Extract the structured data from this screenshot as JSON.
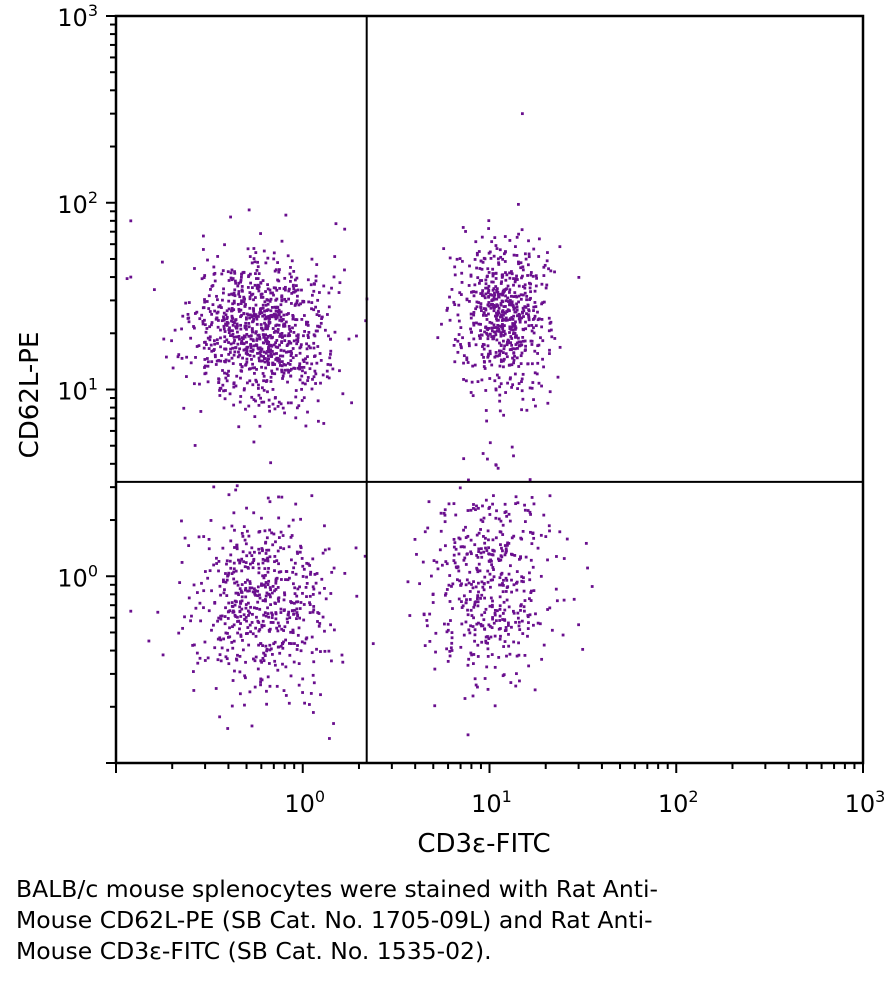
{
  "chart_data": {
    "type": "scatter",
    "title": "",
    "xlabel": "CD3ε-FITC",
    "ylabel": "CD62L-PE",
    "xscale": "log",
    "yscale": "log",
    "xlim": [
      0.1,
      1000
    ],
    "ylim": [
      0.1,
      1000
    ],
    "x_ticks": [
      {
        "base": "10",
        "exp": "0",
        "value": 1
      },
      {
        "base": "10",
        "exp": "1",
        "value": 10
      },
      {
        "base": "10",
        "exp": "2",
        "value": 100
      },
      {
        "base": "10",
        "exp": "3",
        "value": 1000
      }
    ],
    "y_ticks": [
      {
        "base": "10",
        "exp": "0",
        "value": 1
      },
      {
        "base": "10",
        "exp": "1",
        "value": 10
      },
      {
        "base": "10",
        "exp": "2",
        "value": 100
      },
      {
        "base": "10",
        "exp": "3",
        "value": 1000
      }
    ],
    "quadrant_gates": {
      "x": 2.2,
      "y": 3.2
    },
    "point_color": "#6a0f8e",
    "clusters": [
      {
        "name": "CD3-CD62L+",
        "center_x": 0.6,
        "center_y": 20,
        "spread_x": 0.18,
        "spread_y": 0.2,
        "count": 950
      },
      {
        "name": "CD3-CD62L-",
        "center_x": 0.6,
        "center_y": 0.75,
        "spread_x": 0.18,
        "spread_y": 0.26,
        "count": 600
      },
      {
        "name": "CD3+CD62L+",
        "center_x": 12,
        "center_y": 25,
        "spread_x": 0.12,
        "spread_y": 0.2,
        "count": 650
      },
      {
        "name": "CD3+CD62L-",
        "center_x": 10,
        "center_y": 0.9,
        "spread_x": 0.18,
        "spread_y": 0.26,
        "count": 480
      }
    ],
    "outliers": [
      {
        "x": 15,
        "y": 300
      },
      {
        "x": 0.12,
        "y": 80
      },
      {
        "x": 0.12,
        "y": 40
      },
      {
        "x": 0.12,
        "y": 0.65
      },
      {
        "x": 0.15,
        "y": 0.45
      },
      {
        "x": 30,
        "y": 0.55
      },
      {
        "x": 33,
        "y": 1.5
      }
    ]
  },
  "caption": {
    "line1": "BALB/c mouse splenocytes were stained with Rat Anti-",
    "line2": "Mouse CD62L-PE (SB Cat. No. 1705-09L) and Rat Anti-",
    "line3": "Mouse CD3ε-FITC (SB Cat. No. 1535-02)."
  }
}
